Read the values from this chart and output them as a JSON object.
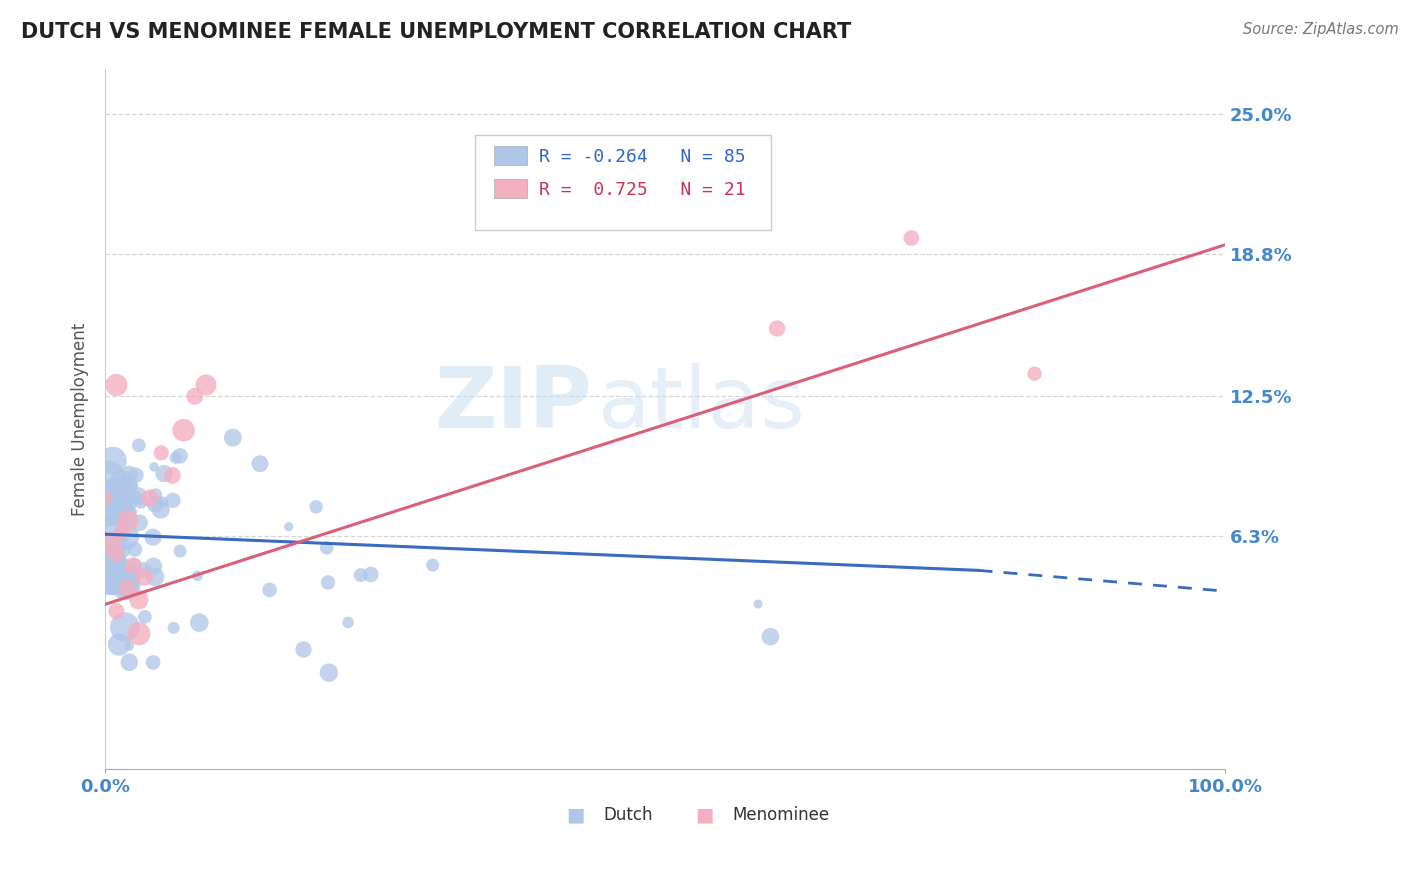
{
  "title": "DUTCH VS MENOMINEE FEMALE UNEMPLOYMENT CORRELATION CHART",
  "source_text": "Source: ZipAtlas.com",
  "ylabel": "Female Unemployment",
  "xlim": [
    0,
    1.0
  ],
  "ylim": [
    -0.04,
    0.27
  ],
  "xtick_positions": [
    0,
    1.0
  ],
  "xtick_labels": [
    "0.0%",
    "100.0%"
  ],
  "ytick_values": [
    0.063,
    0.125,
    0.188,
    0.25
  ],
  "ytick_labels": [
    "6.3%",
    "12.5%",
    "18.8%",
    "25.0%"
  ],
  "dutch_color": "#aec6e8",
  "menominee_color": "#f4afc0",
  "dutch_line_color": "#3a6bbf",
  "menominee_line_color": "#d95f7a",
  "dutch_R": -0.264,
  "dutch_N": 85,
  "menominee_R": 0.725,
  "menominee_N": 21,
  "watermark_zip": "ZIP",
  "watermark_atlas": "atlas",
  "background_color": "#ffffff",
  "grid_color": "#cccccc",
  "title_color": "#222222",
  "axis_label_color": "#555555",
  "tick_label_color": "#4488cc",
  "legend_text_color": "#4466aa",
  "legend_r_color_dutch": "#3366cc",
  "legend_r_color_men": "#cc3355"
}
